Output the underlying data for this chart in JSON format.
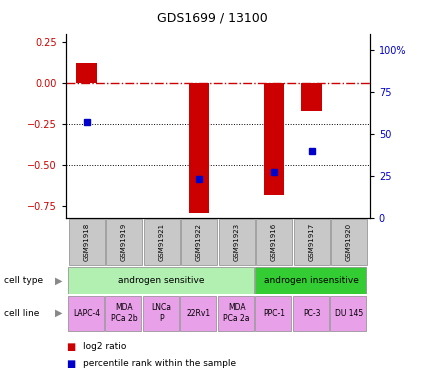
{
  "title": "GDS1699 / 13100",
  "samples": [
    "GSM91918",
    "GSM91919",
    "GSM91921",
    "GSM91922",
    "GSM91923",
    "GSM91916",
    "GSM91917",
    "GSM91920"
  ],
  "log2_ratio": [
    0.12,
    0.0,
    0.0,
    -0.79,
    0.0,
    -0.68,
    -0.17,
    0.0
  ],
  "percentile_rank": [
    57,
    null,
    null,
    23,
    null,
    27,
    40,
    null
  ],
  "ylim_left": [
    -0.82,
    0.3
  ],
  "ylim_right": [
    0,
    110
  ],
  "left_yticks": [
    -0.75,
    -0.5,
    -0.25,
    0,
    0.25
  ],
  "right_yticks": [
    0,
    25,
    50,
    75,
    100
  ],
  "right_yticklabels": [
    "0",
    "25",
    "50",
    "75",
    "100%"
  ],
  "cell_types": [
    {
      "label": "androgen sensitive",
      "span": [
        0,
        5
      ],
      "color": "#b2f0b2"
    },
    {
      "label": "androgen insensitive",
      "span": [
        5,
        8
      ],
      "color": "#33cc33"
    }
  ],
  "cell_lines": [
    {
      "label": "LAPC-4",
      "span": [
        0,
        1
      ],
      "color": "#e8a0e8"
    },
    {
      "label": "MDA\nPCa 2b",
      "span": [
        1,
        2
      ],
      "color": "#e8a0e8"
    },
    {
      "label": "LNCa\nP",
      "span": [
        2,
        3
      ],
      "color": "#e8a0e8"
    },
    {
      "label": "22Rv1",
      "span": [
        3,
        4
      ],
      "color": "#e8a0e8"
    },
    {
      "label": "MDA\nPCa 2a",
      "span": [
        4,
        5
      ],
      "color": "#e8a0e8"
    },
    {
      "label": "PPC-1",
      "span": [
        5,
        6
      ],
      "color": "#e8a0e8"
    },
    {
      "label": "PC-3",
      "span": [
        6,
        7
      ],
      "color": "#e8a0e8"
    },
    {
      "label": "DU 145",
      "span": [
        7,
        8
      ],
      "color": "#e8a0e8"
    }
  ],
  "bar_color": "#cc0000",
  "dot_color": "#0000cc",
  "hline_color": "#cc0000",
  "dotline_color": "#000000",
  "label_color_left": "#cc0000",
  "label_color_right": "#0000cc",
  "sample_box_color": "#c8c8c8",
  "legend_items": [
    {
      "label": "log2 ratio",
      "color": "#cc0000"
    },
    {
      "label": "percentile rank within the sample",
      "color": "#0000cc"
    }
  ]
}
